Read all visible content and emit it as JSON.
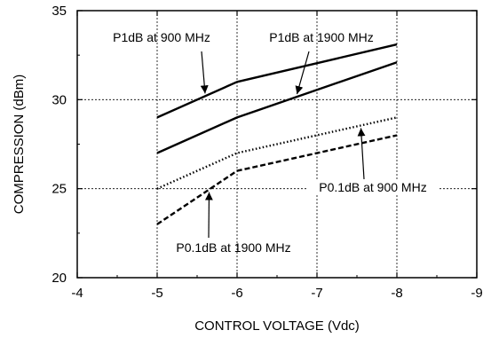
{
  "chart_data": {
    "type": "line",
    "xlabel": "CONTROL VOLTAGE (Vdc)",
    "ylabel": "COMPRESSION (dBm)",
    "xlim": [
      -4,
      -9
    ],
    "ylim": [
      20,
      35
    ],
    "x_ticks": [
      -4,
      -5,
      -6,
      -7,
      -8,
      -9
    ],
    "y_ticks": [
      20,
      25,
      30,
      35
    ],
    "x_tick_labels": [
      "-4",
      "-5",
      "-6",
      "-7",
      "-8",
      "-9"
    ],
    "y_tick_labels": [
      "20",
      "25",
      "30",
      "35"
    ],
    "grid": "dashed, at x = -5, -6, -7, -8 and y = 25, 30",
    "series": [
      {
        "name": "P1dB at 900 MHz",
        "style": "solid",
        "x": [
          -5,
          -6,
          -8
        ],
        "y": [
          29,
          31,
          33.1
        ]
      },
      {
        "name": "P1dB at 1900 MHz",
        "style": "solid",
        "x": [
          -5,
          -6,
          -8
        ],
        "y": [
          27,
          29,
          32.1
        ]
      },
      {
        "name": "P0.1dB at 900 MHz",
        "style": "dotted",
        "x": [
          -5,
          -6,
          -8
        ],
        "y": [
          25,
          27,
          29
        ]
      },
      {
        "name": "P0.1dB at 1900 MHz",
        "style": "dashed",
        "x": [
          -5,
          -6,
          -8
        ],
        "y": [
          23,
          26,
          28
        ]
      }
    ],
    "annotations": [
      {
        "text": "P1dB at 900 MHz",
        "series": 0,
        "arrow_at_x": -5.6
      },
      {
        "text": "P1dB at 1900 MHz",
        "series": 1,
        "arrow_at_x": -6.75
      },
      {
        "text": "P0.1dB at 900 MHz",
        "series": 2,
        "arrow_at_x": -7.55
      },
      {
        "text": "P0.1dB at 1900 MHz",
        "series": 3,
        "arrow_at_x": -5.65
      }
    ]
  }
}
